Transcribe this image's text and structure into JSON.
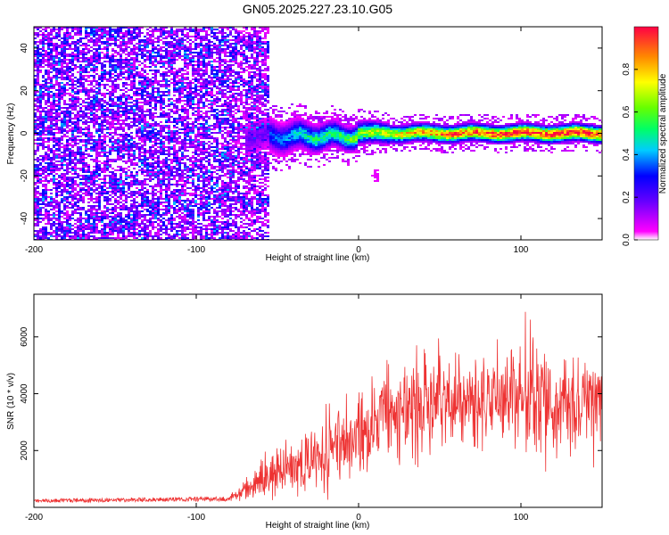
{
  "title": "GN05.2025.227.23.10.G05",
  "chart_data": [
    {
      "type": "heatmap",
      "xlabel": "Height of straight line (km)",
      "ylabel": "Frequency (Hz)",
      "xlim": [
        -200,
        150
      ],
      "ylim": [
        -50,
        50
      ],
      "xticks": [
        "-200",
        "-100",
        "0",
        "100"
      ],
      "xtick_values": [
        -200,
        -100,
        0,
        100
      ],
      "yticks": [
        "-40",
        "-20",
        "0",
        "20",
        "40"
      ],
      "ytick_values": [
        -40,
        -20,
        0,
        20,
        40
      ],
      "colorbar": {
        "label": "Normalized spectral amplitude",
        "ticks": [
          "0.0",
          "0.2",
          "0.4",
          "0.6",
          "0.8"
        ],
        "tick_values": [
          0.0,
          0.2,
          0.4,
          0.6,
          0.8
        ],
        "range": [
          0,
          1
        ],
        "colormap": "rainbow (magenta-blue-cyan-green-yellow-red)"
      },
      "features": {
        "noise_region_x": [
          -200,
          -55
        ],
        "noise_amplitude": [
          0.05,
          0.3
        ],
        "signal_start_x": -55,
        "signal_freq_hz": 0,
        "signal_amplitude": [
          [
            -50,
            0.35
          ],
          [
            -30,
            0.5
          ],
          [
            -10,
            0.55
          ],
          [
            0,
            0.65
          ],
          [
            20,
            0.75
          ],
          [
            40,
            0.85
          ],
          [
            60,
            0.9
          ],
          [
            100,
            0.95
          ],
          [
            150,
            1.0
          ]
        ],
        "artifact": {
          "x": 10,
          "y": -20
        }
      }
    },
    {
      "type": "line",
      "xlabel": "Height of straight line (km)",
      "ylabel": "SNR (10 * v/v)",
      "xlim": [
        -200,
        150
      ],
      "ylim": [
        0,
        7500
      ],
      "xticks": [
        "-200",
        "-100",
        "0",
        "100"
      ],
      "xtick_values": [
        -200,
        -100,
        0,
        100
      ],
      "yticks": [
        "2000",
        "4000",
        "6000"
      ],
      "ytick_values": [
        2000,
        4000,
        6000
      ],
      "color": "#ee3333",
      "envelope": {
        "x": [
          -200,
          -80,
          -70,
          -60,
          -40,
          -20,
          0,
          20,
          40,
          60,
          80,
          100,
          120,
          140,
          150
        ],
        "mean": [
          230,
          300,
          600,
          1000,
          1500,
          1800,
          2700,
          3200,
          3600,
          3700,
          3700,
          3900,
          3700,
          3800,
          3600
        ],
        "spread": [
          80,
          100,
          300,
          700,
          900,
          1200,
          1500,
          1600,
          1700,
          1700,
          1700,
          1900,
          1600,
          1500,
          1300
        ]
      }
    }
  ],
  "colors": {
    "axes": "#000000",
    "line": "#ee3333",
    "background": "#ffffff"
  }
}
